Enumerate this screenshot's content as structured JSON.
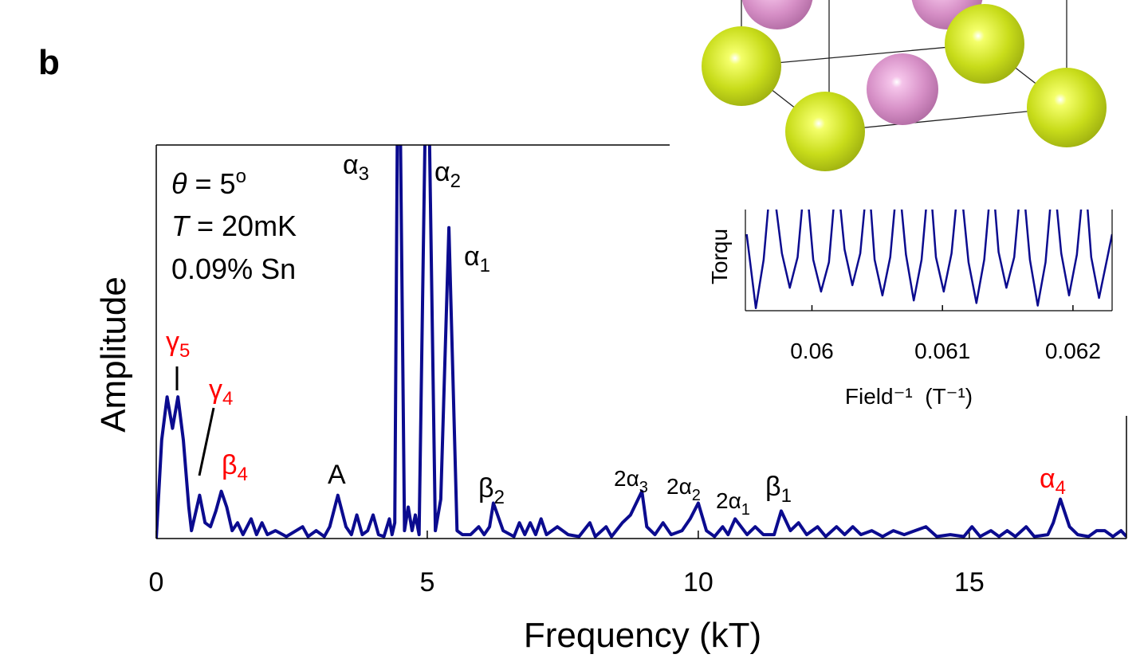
{
  "chart_data": [
    {
      "type": "line",
      "panel_label": "b",
      "xlabel": "Frequency (kT)",
      "ylabel": "Amplitude",
      "x": [
        0,
        0.1,
        0.2,
        0.3,
        0.4,
        0.5,
        0.6,
        0.65,
        0.7,
        0.8,
        0.9,
        1.0,
        1.1,
        1.2,
        1.3,
        1.4,
        1.5,
        1.6,
        1.75,
        1.85,
        1.95,
        2.05,
        2.2,
        2.4,
        2.7,
        2.8,
        2.95,
        3.1,
        3.2,
        3.35,
        3.5,
        3.6,
        3.7,
        3.8,
        3.9,
        4.0,
        4.1,
        4.2,
        4.3,
        4.35,
        4.4,
        4.47,
        4.58,
        4.65,
        4.72,
        4.78,
        4.85,
        5.0,
        5.15,
        5.25,
        5.4,
        5.55,
        5.65,
        5.8,
        5.95,
        6.05,
        6.15,
        6.22,
        6.4,
        6.6,
        6.7,
        6.8,
        6.9,
        7.0,
        7.1,
        7.2,
        7.4,
        7.6,
        7.8,
        8.0,
        8.1,
        8.3,
        8.4,
        8.6,
        8.75,
        8.96,
        9.05,
        9.2,
        9.35,
        9.5,
        9.7,
        9.85,
        10.0,
        10.15,
        10.3,
        10.45,
        10.55,
        10.68,
        10.9,
        11.05,
        11.2,
        11.4,
        11.53,
        11.7,
        11.85,
        12.0,
        12.2,
        12.35,
        12.55,
        12.7,
        12.85,
        13.0,
        13.2,
        13.4,
        13.6,
        13.8,
        14.0,
        14.2,
        14.4,
        14.65,
        14.9,
        15.05,
        15.2,
        15.4,
        15.55,
        15.7,
        15.85,
        16.05,
        16.2,
        16.45,
        16.55,
        16.68,
        16.85,
        17.0,
        17.2,
        17.35,
        17.5,
        17.65,
        17.8,
        17.9
      ],
      "values": [
        0,
        25,
        36,
        28,
        36,
        25,
        8,
        2,
        5,
        11,
        4,
        3,
        7,
        12,
        8,
        2,
        4,
        1,
        5,
        1,
        4,
        1,
        2,
        0.5,
        3,
        0.5,
        2,
        0.5,
        3,
        11,
        3,
        1,
        6,
        1,
        2,
        6,
        1,
        0.5,
        5,
        1,
        4,
        150,
        2,
        8,
        2,
        6,
        1,
        140,
        2,
        10,
        79,
        2,
        1,
        1,
        3,
        1,
        3,
        9,
        2,
        0.5,
        4,
        1,
        4,
        1,
        5,
        1,
        3,
        1,
        0.5,
        4,
        0.5,
        3,
        0.5,
        4,
        6,
        12,
        3,
        1,
        4,
        1,
        2,
        5,
        9,
        2,
        0.5,
        3,
        1,
        5,
        1,
        3,
        1,
        1,
        7,
        2,
        4,
        1,
        3,
        0.5,
        3,
        1,
        3,
        1,
        2,
        0.5,
        2,
        1,
        2,
        3,
        0.5,
        1,
        0.5,
        3,
        0.5,
        2,
        0.5,
        2,
        0.5,
        3,
        0.5,
        1,
        4,
        10,
        3,
        1,
        0.5,
        2,
        2,
        0.5,
        2,
        0.5
      ],
      "color": "#0b0b8f",
      "xlim": [
        0,
        17.9
      ],
      "xticks": [
        0,
        5,
        10,
        15
      ],
      "ylim": [
        0,
        100
      ],
      "grid": false,
      "info": [
        {
          "italic": "θ",
          "text": " = 5",
          "sup": "o"
        },
        {
          "italic": "T",
          "text": " = 20mK"
        },
        {
          "text": "0.09% Sn"
        }
      ],
      "annotations": [
        {
          "text": "α",
          "sub": "3",
          "color": "#000000"
        },
        {
          "text": "α",
          "sub": "2",
          "color": "#000000"
        },
        {
          "text": "α",
          "sub": "1",
          "color": "#000000"
        },
        {
          "text": "γ",
          "sub": "5",
          "color": "#ff0000"
        },
        {
          "text": "γ",
          "sub": "4",
          "color": "#ff0000"
        },
        {
          "text": "β",
          "sub": "4",
          "color": "#ff0000"
        },
        {
          "text": "A",
          "color": "#000000"
        },
        {
          "text": "β",
          "sub": "2",
          "color": "#000000"
        },
        {
          "text": "2α",
          "sub": "3",
          "color": "#000000"
        },
        {
          "text": "2α",
          "sub": "2",
          "color": "#000000"
        },
        {
          "text": "2α",
          "sub": "1",
          "color": "#000000"
        },
        {
          "text": "β",
          "sub": "1",
          "color": "#000000"
        },
        {
          "text": "α",
          "sub": "4",
          "color": "#ff0000"
        }
      ]
    },
    {
      "type": "line",
      "xlabel": "Field⁻¹  (T⁻¹)",
      "ylabel": "Torqu",
      "x": [
        0.0595,
        0.05957,
        0.05963,
        0.05969,
        0.05977,
        0.05983,
        0.05989,
        0.05995,
        0.06001,
        0.06007,
        0.06013,
        0.06019,
        0.06025,
        0.06031,
        0.06037,
        0.06043,
        0.06048,
        0.06054,
        0.0606,
        0.06066,
        0.06072,
        0.06078,
        0.06084,
        0.0609,
        0.06095,
        0.06101,
        0.06107,
        0.06113,
        0.0612,
        0.06126,
        0.06132,
        0.06138,
        0.06143,
        0.06149,
        0.06155,
        0.06161,
        0.06167,
        0.06173,
        0.06179,
        0.06185,
        0.06191,
        0.06197,
        0.06203,
        0.06209,
        0.06214,
        0.0622,
        0.06226,
        0.0623
      ],
      "values": [
        60,
        2,
        40,
        110,
        45,
        18,
        42,
        110,
        40,
        15,
        38,
        110,
        48,
        20,
        45,
        110,
        40,
        12,
        42,
        110,
        44,
        8,
        40,
        110,
        42,
        15,
        45,
        110,
        38,
        6,
        40,
        110,
        46,
        18,
        42,
        110,
        40,
        4,
        38,
        110,
        45,
        12,
        44,
        110,
        42,
        10,
        40,
        60
      ],
      "color": "#0b0b8f",
      "xlim": [
        0.05949,
        0.0623
      ],
      "xticks": [
        0.06,
        0.061,
        0.062
      ],
      "ylim": [
        0,
        100
      ],
      "grid": false
    }
  ]
}
